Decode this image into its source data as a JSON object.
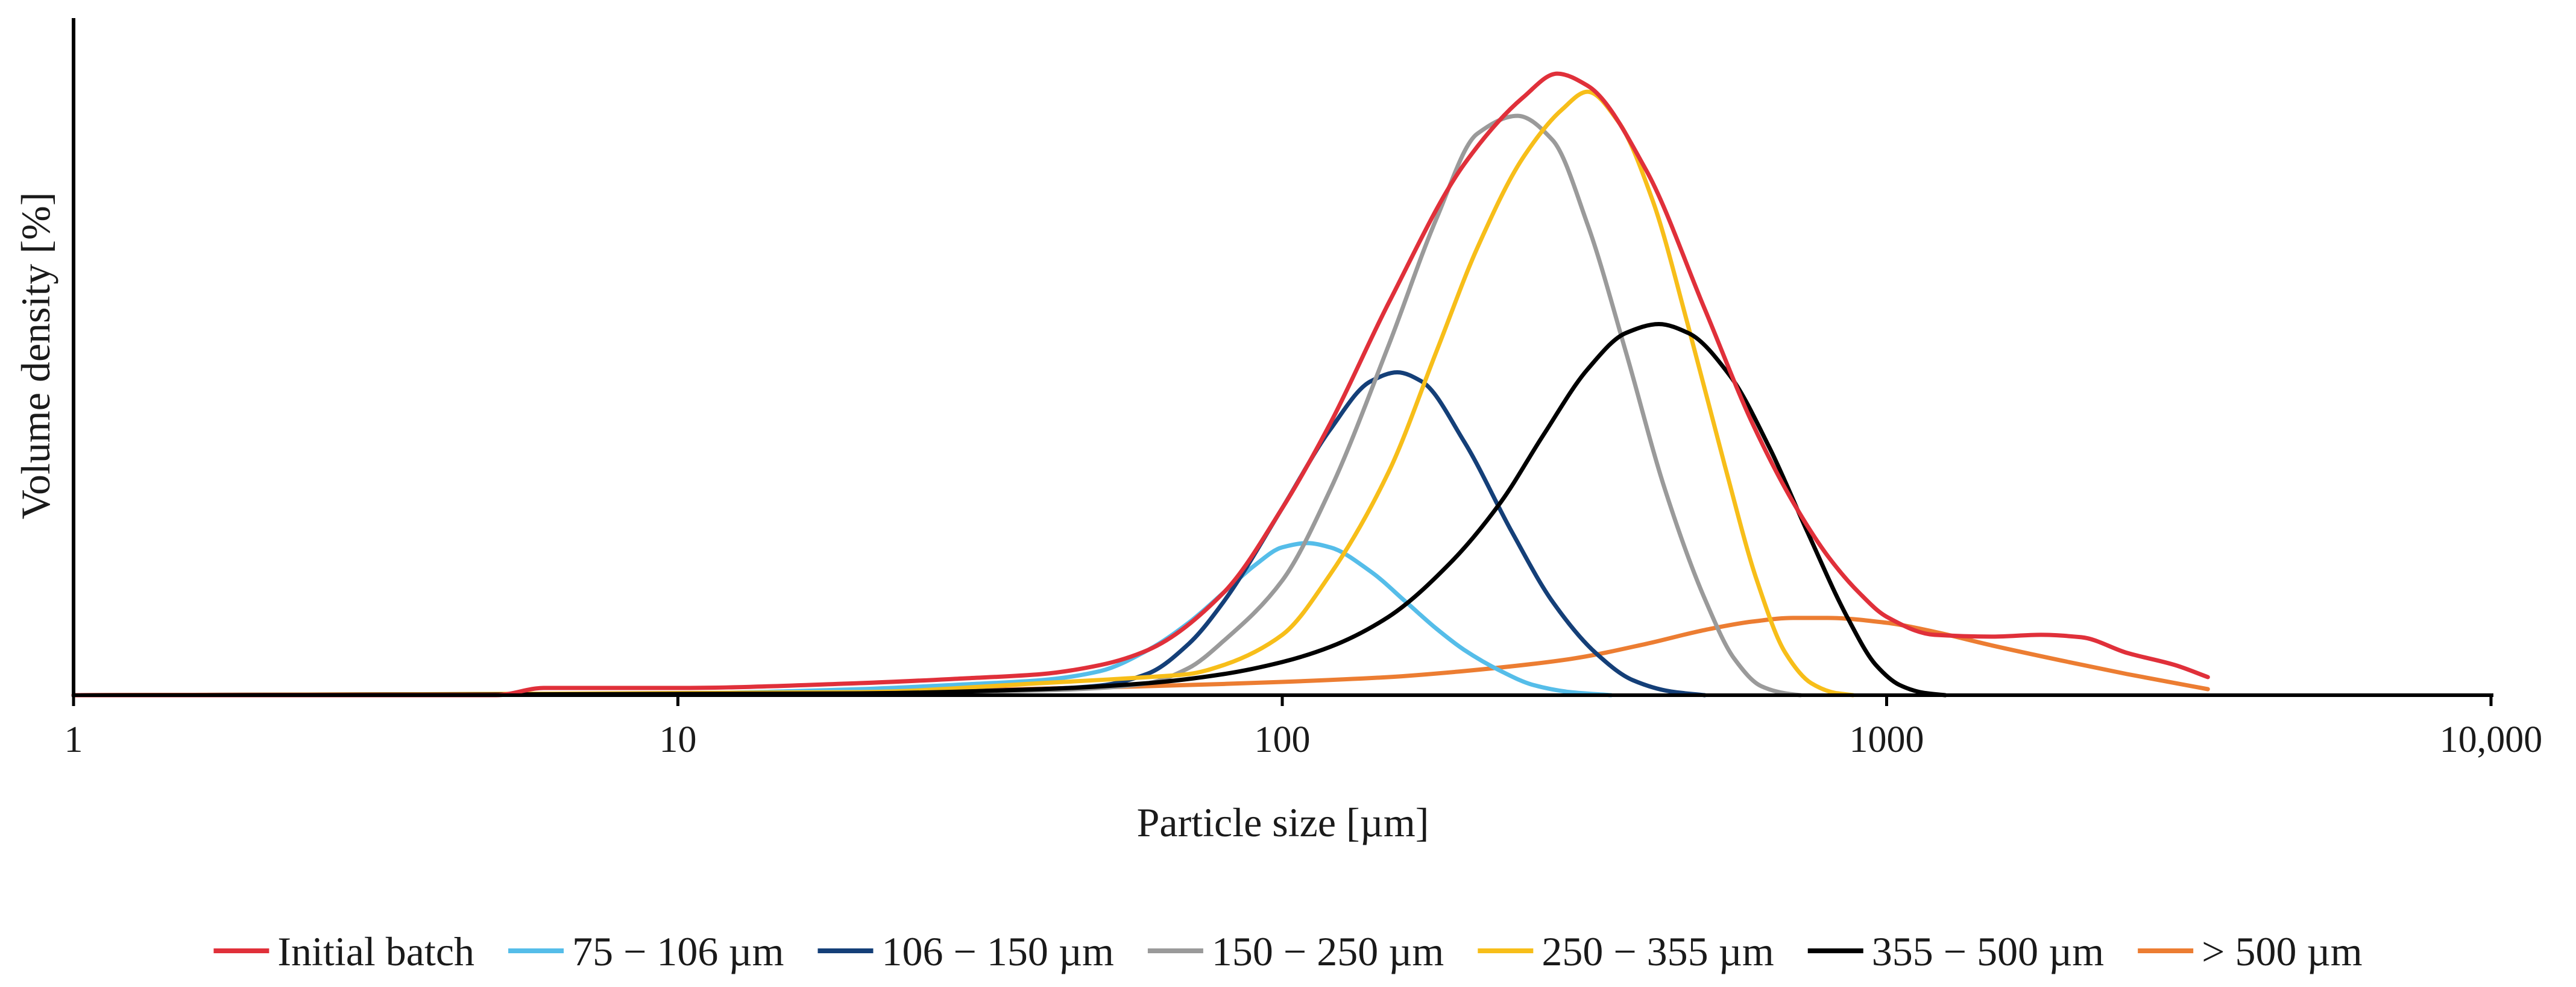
{
  "chart_data": {
    "type": "line",
    "title": "",
    "xlabel": "Particle size [µm]",
    "ylabel": "Volume density [%]",
    "xscale": "log",
    "xlim": [
      1,
      10000
    ],
    "ylim": [
      0,
      1.12
    ],
    "grid": false,
    "legend_position": "bottom",
    "x_ticks": [
      {
        "value": 1,
        "label": "1"
      },
      {
        "value": 10,
        "label": "10"
      },
      {
        "value": 100,
        "label": "100"
      },
      {
        "value": 1000,
        "label": "1000"
      },
      {
        "value": 10000,
        "label": "10,000"
      }
    ],
    "series": [
      {
        "name": "Initial batch",
        "color": "#e0303a",
        "x": [
          1,
          5,
          6,
          10,
          20,
          30,
          40,
          50,
          60,
          80,
          100,
          120,
          150,
          200,
          250,
          285,
          320,
          400,
          500,
          600,
          700,
          800,
          900,
          1000,
          1200,
          1500,
          1800,
          2100,
          2500,
          3000,
          3400
        ],
        "y": [
          0,
          0,
          0.012,
          0.012,
          0.02,
          0.028,
          0.035,
          0.05,
          0.075,
          0.17,
          0.31,
          0.45,
          0.65,
          0.88,
          0.99,
          1.03,
          1.01,
          0.87,
          0.64,
          0.45,
          0.32,
          0.23,
          0.17,
          0.13,
          0.1,
          0.097,
          0.1,
          0.096,
          0.07,
          0.05,
          0.03
        ]
      },
      {
        "name": "75 − 106 µm",
        "color": "#55bde9",
        "x": [
          1,
          10,
          20,
          30,
          40,
          50,
          60,
          70,
          80,
          90,
          100,
          110,
          120,
          140,
          160,
          180,
          200,
          230,
          260,
          300,
          350
        ],
        "y": [
          0,
          0.003,
          0.01,
          0.018,
          0.025,
          0.04,
          0.075,
          0.12,
          0.17,
          0.215,
          0.245,
          0.252,
          0.245,
          0.205,
          0.155,
          0.11,
          0.075,
          0.04,
          0.017,
          0.005,
          0
        ]
      },
      {
        "name": "106 − 150 µm",
        "color": "#143f78",
        "x": [
          1,
          20,
          40,
          50,
          60,
          70,
          80,
          100,
          120,
          140,
          155,
          170,
          200,
          240,
          280,
          330,
          380,
          440,
          500
        ],
        "y": [
          0,
          0.004,
          0.01,
          0.016,
          0.036,
          0.085,
          0.155,
          0.31,
          0.44,
          0.52,
          0.535,
          0.52,
          0.42,
          0.27,
          0.155,
          0.07,
          0.025,
          0.006,
          0
        ]
      },
      {
        "name": "150 − 250 µm",
        "color": "#9a9a9a",
        "x": [
          1,
          20,
          40,
          50,
          60,
          70,
          80,
          100,
          120,
          150,
          180,
          210,
          245,
          280,
          320,
          370,
          430,
          500,
          560,
          620,
          680,
          720
        ],
        "y": [
          0,
          0.003,
          0.008,
          0.012,
          0.02,
          0.045,
          0.09,
          0.19,
          0.34,
          0.58,
          0.79,
          0.93,
          0.96,
          0.92,
          0.78,
          0.57,
          0.34,
          0.16,
          0.06,
          0.015,
          0.003,
          0
        ]
      },
      {
        "name": "250 − 355 µm",
        "color": "#f7be19",
        "x": [
          1,
          20,
          40,
          60,
          70,
          80,
          100,
          120,
          150,
          180,
          210,
          250,
          290,
          320,
          360,
          410,
          470,
          540,
          610,
          680,
          750,
          820,
          880
        ],
        "y": [
          0,
          0.005,
          0.02,
          0.03,
          0.035,
          0.05,
          0.1,
          0.2,
          0.37,
          0.57,
          0.74,
          0.89,
          0.97,
          1.0,
          0.95,
          0.82,
          0.61,
          0.38,
          0.19,
          0.07,
          0.02,
          0.004,
          0
        ]
      },
      {
        "name": "355 − 500 µm",
        "color": "#000000",
        "x": [
          1,
          20,
          40,
          60,
          80,
          100,
          120,
          150,
          190,
          230,
          270,
          320,
          370,
          420,
          470,
          550,
          640,
          740,
          860,
          960,
          1050,
          1150,
          1250
        ],
        "y": [
          0,
          0.003,
          0.01,
          0.02,
          0.035,
          0.055,
          0.08,
          0.13,
          0.22,
          0.32,
          0.43,
          0.54,
          0.6,
          0.615,
          0.6,
          0.53,
          0.41,
          0.27,
          0.13,
          0.05,
          0.017,
          0.004,
          0
        ]
      },
      {
        "name": "> 500 µm",
        "color": "#ec7d32",
        "x": [
          1,
          10,
          30,
          60,
          100,
          150,
          200,
          300,
          400,
          500,
          600,
          700,
          800,
          1000,
          1200,
          1500,
          2000,
          2500,
          3400
        ],
        "y": [
          0,
          0.003,
          0.008,
          0.015,
          0.022,
          0.03,
          0.04,
          0.06,
          0.085,
          0.108,
          0.122,
          0.128,
          0.128,
          0.12,
          0.105,
          0.082,
          0.055,
          0.035,
          0.01
        ]
      }
    ]
  }
}
